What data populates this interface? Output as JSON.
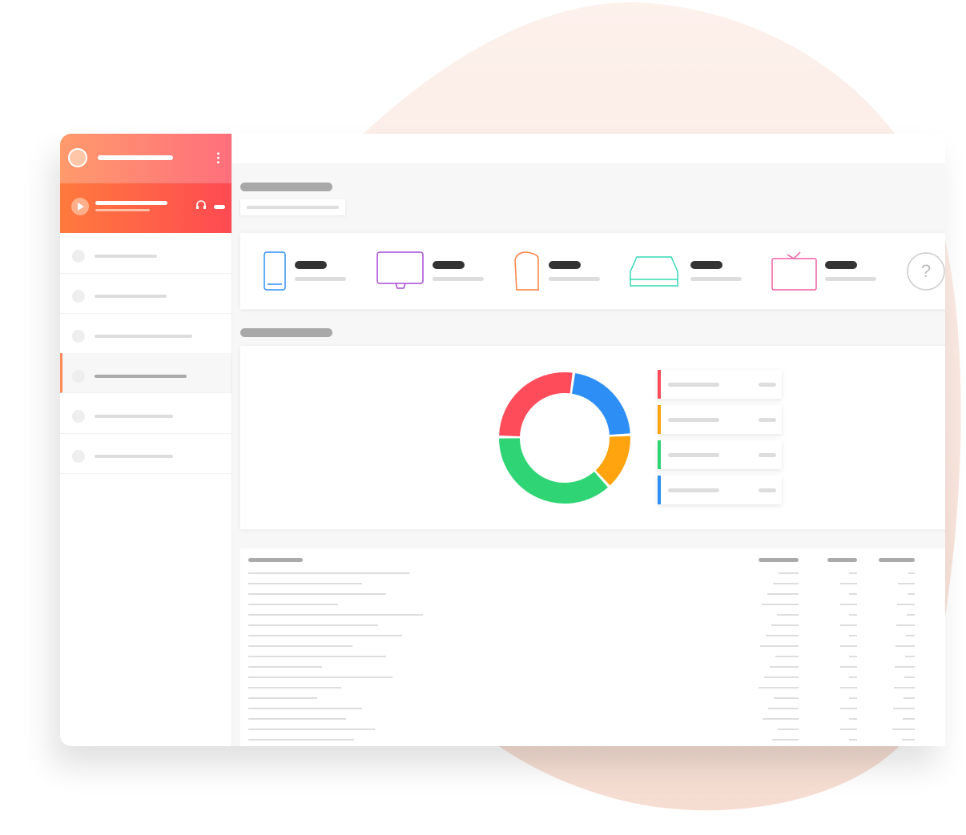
{
  "chart_data": {
    "type": "donut",
    "values": [
      22,
      14,
      37,
      27
    ],
    "colors": [
      "#2d8ff5",
      "#ffa40e",
      "#2fd574",
      "#ff4c5b"
    ]
  }
}
